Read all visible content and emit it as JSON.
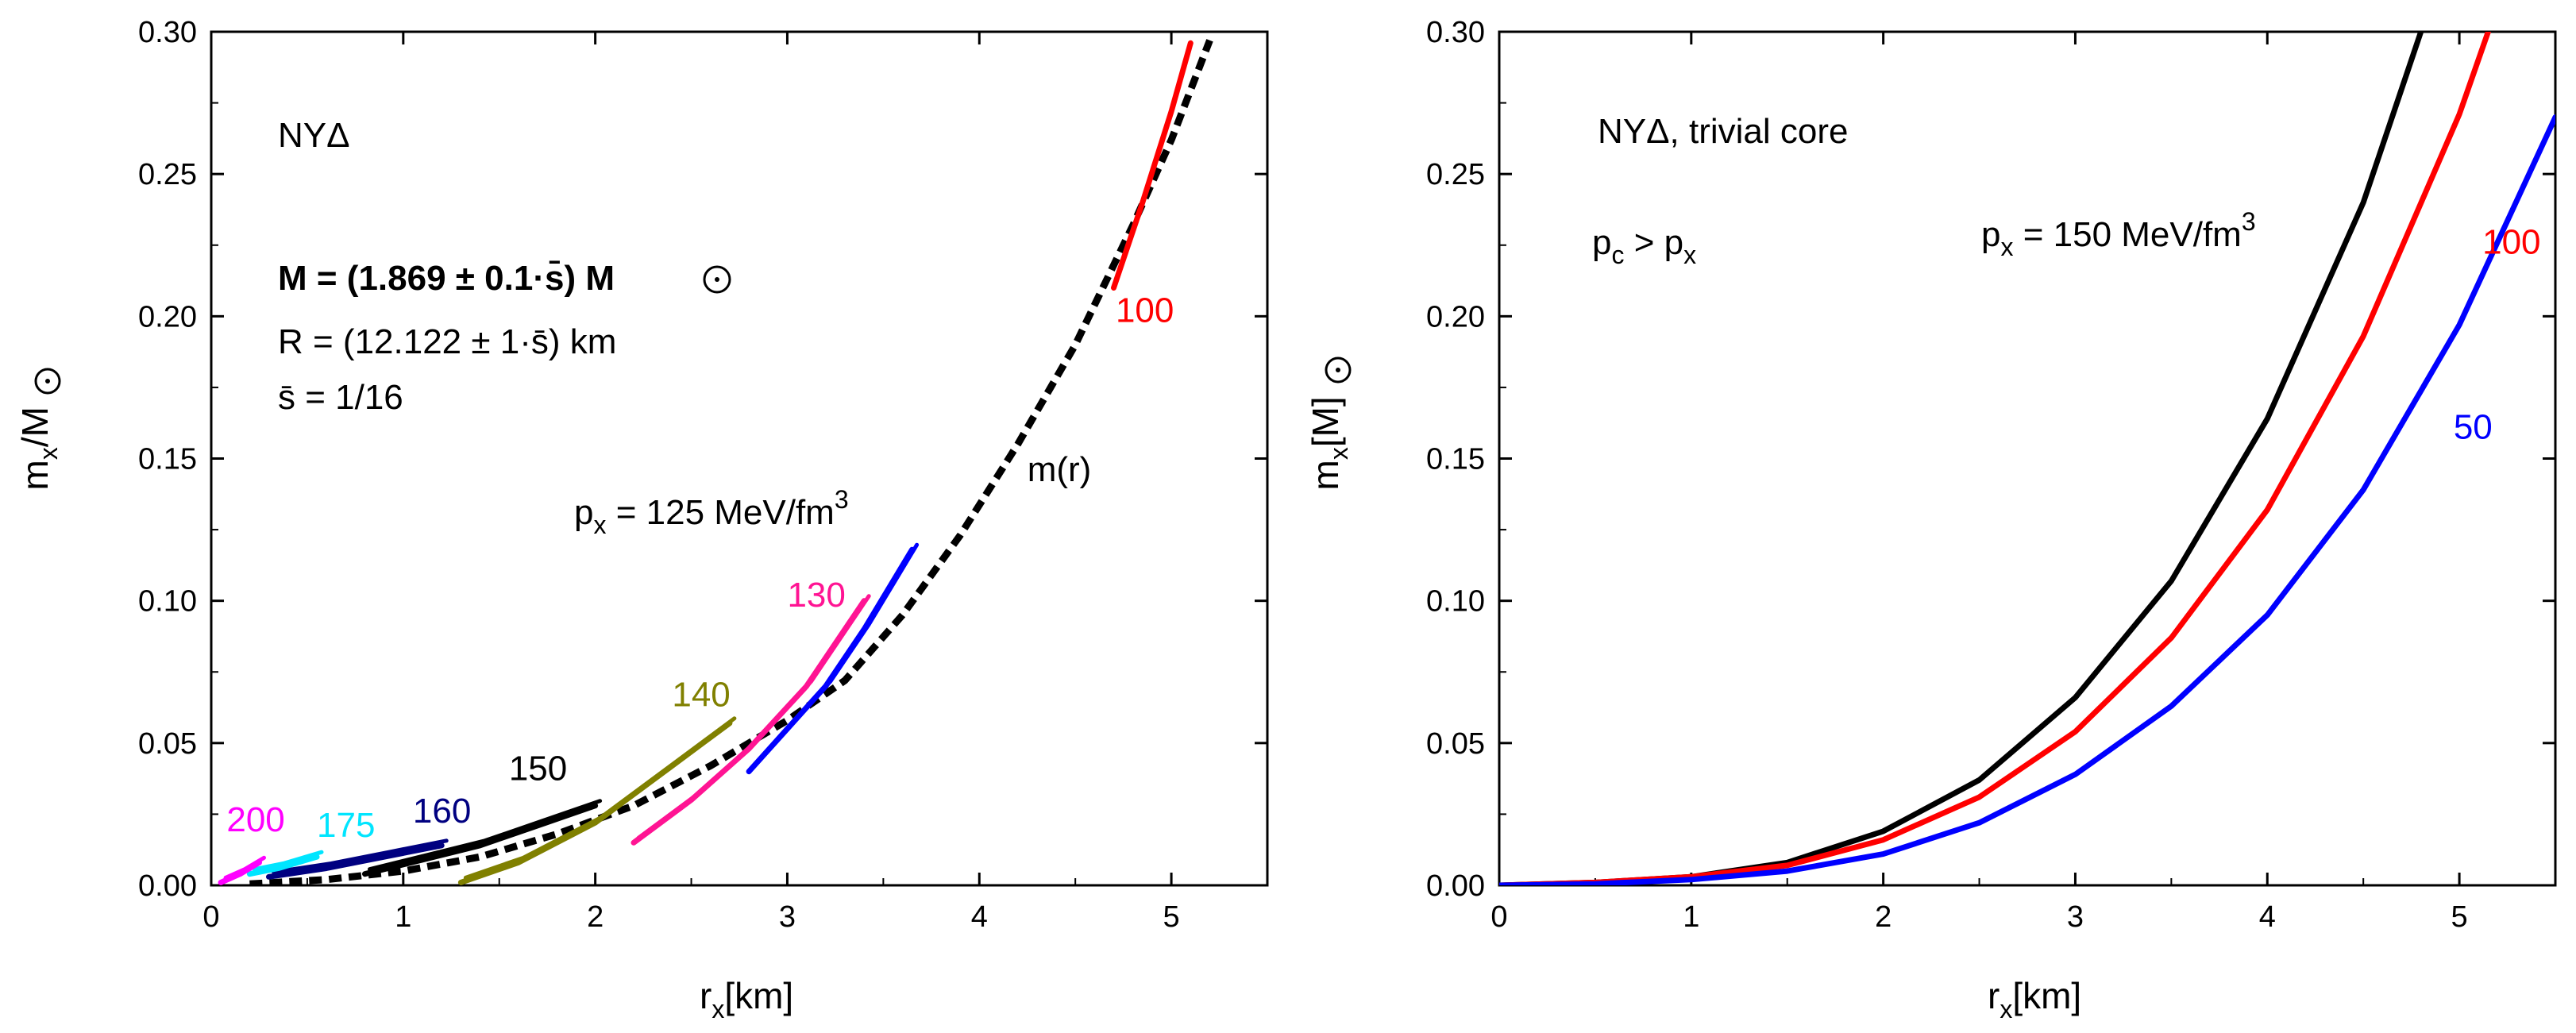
{
  "colors": {
    "red": "#ff0000",
    "blue": "#0000ff",
    "magenta": "#ff00ff",
    "cyan": "#00e5ff",
    "navy": "#000080",
    "black": "#000000",
    "olive": "#808000",
    "pink": "#ff1493"
  },
  "chart_data": [
    {
      "type": "line",
      "panel": "left",
      "xlabel": "r",
      "xlabel_sub": "x",
      "xlabel_unit": "[km]",
      "ylabel": "m",
      "ylabel_sub": "x",
      "ylabel_unit": "/M",
      "xlim": [
        0,
        5.5
      ],
      "ylim": [
        0,
        0.3
      ],
      "x_ticks": [
        "0",
        "1",
        "2",
        "3",
        "4",
        "5"
      ],
      "y_ticks": [
        "0.00",
        "0.05",
        "0.10",
        "0.15",
        "0.20",
        "0.25",
        "0.30"
      ],
      "annotations": {
        "model": "NYΔ",
        "mass_line": "M = (1.869 ± 0.1·s̄) M",
        "radius_line": "R = (12.122 ± 1·s̄) km",
        "s_line": "s̄ = 1/16",
        "px_line": "p",
        "px_sub": "x",
        "px_value": " = 125 MeV/fm",
        "px_sup": "3"
      },
      "series": [
        {
          "name": "m(r)",
          "label": "m(r)",
          "color": "black",
          "style": "dashed",
          "x": [
            0.2,
            0.6,
            1.0,
            1.4,
            1.8,
            2.2,
            2.6,
            3.0,
            3.3,
            3.6,
            3.9,
            4.2,
            4.5,
            4.8,
            5.0,
            5.2
          ],
          "y": [
            0.0005,
            0.002,
            0.005,
            0.01,
            0.018,
            0.028,
            0.042,
            0.058,
            0.072,
            0.095,
            0.123,
            0.155,
            0.19,
            0.232,
            0.262,
            0.297
          ]
        },
        {
          "name": "100",
          "label": "100",
          "color": "red",
          "style": "solid",
          "x": [
            4.7,
            4.85,
            5.0,
            5.1
          ],
          "y": [
            0.21,
            0.24,
            0.272,
            0.296
          ]
        },
        {
          "name": "125",
          "label": "",
          "color": "blue",
          "style": "solid",
          "x": [
            2.8,
            3.0,
            3.2,
            3.4,
            3.65
          ],
          "y": [
            0.04,
            0.055,
            0.07,
            0.09,
            0.118
          ]
        },
        {
          "name": "130",
          "label": "130",
          "color": "pink",
          "style": "solid",
          "x": [
            2.2,
            2.5,
            2.8,
            3.1,
            3.4
          ],
          "y": [
            0.015,
            0.03,
            0.048,
            0.07,
            0.1
          ]
        },
        {
          "name": "140",
          "label": "140",
          "color": "olive",
          "style": "solid",
          "x": [
            1.3,
            1.6,
            2.0,
            2.4,
            2.7
          ],
          "y": [
            0.001,
            0.008,
            0.022,
            0.042,
            0.057
          ]
        },
        {
          "name": "150",
          "label": "150",
          "color": "black",
          "style": "solid",
          "x": [
            0.8,
            1.1,
            1.4,
            1.7,
            2.0
          ],
          "y": [
            0.004,
            0.009,
            0.014,
            0.021,
            0.028
          ]
        },
        {
          "name": "160",
          "label": "160",
          "color": "navy",
          "style": "solid",
          "x": [
            0.3,
            0.6,
            0.9,
            1.2
          ],
          "y": [
            0.003,
            0.006,
            0.01,
            0.014
          ]
        },
        {
          "name": "175",
          "label": "175",
          "color": "cyan",
          "style": "solid",
          "x": [
            0.2,
            0.35,
            0.55
          ],
          "y": [
            0.004,
            0.006,
            0.01
          ]
        },
        {
          "name": "200",
          "label": "200",
          "color": "magenta",
          "style": "solid",
          "x": [
            0.05,
            0.15,
            0.25
          ],
          "y": [
            0.001,
            0.004,
            0.008
          ]
        }
      ]
    },
    {
      "type": "line",
      "panel": "right",
      "xlabel": "r",
      "xlabel_sub": "x",
      "xlabel_unit": "[km]",
      "ylabel": "m",
      "ylabel_sub": "x",
      "ylabel_unit": "[M",
      "ylabel_unit_end": "]",
      "xlim": [
        0,
        5.5
      ],
      "ylim": [
        0,
        0.3
      ],
      "x_ticks": [
        "0",
        "1",
        "2",
        "3",
        "4",
        "5"
      ],
      "y_ticks": [
        "0.00",
        "0.05",
        "0.10",
        "0.15",
        "0.20",
        "0.25",
        "0.30"
      ],
      "annotations": {
        "title": "NYΔ, trivial core",
        "pc_a": "p",
        "pc_a_sub": "c",
        "pc_gt": " > p",
        "pc_b_sub": "x",
        "px_line": "p",
        "px_sub": "x",
        "px_value": " = 150 MeV/fm",
        "px_sup": "3"
      },
      "series": [
        {
          "name": "150",
          "label": "",
          "color": "black",
          "style": "solid",
          "x": [
            0,
            0.5,
            1.0,
            1.5,
            2.0,
            2.5,
            3.0,
            3.5,
            4.0,
            4.5,
            4.8
          ],
          "y": [
            0,
            0.001,
            0.003,
            0.008,
            0.019,
            0.037,
            0.066,
            0.107,
            0.164,
            0.24,
            0.3
          ]
        },
        {
          "name": "100",
          "label": "100",
          "color": "red",
          "style": "solid",
          "x": [
            0,
            0.5,
            1.0,
            1.5,
            2.0,
            2.5,
            3.0,
            3.5,
            4.0,
            4.5,
            5.0,
            5.15
          ],
          "y": [
            0,
            0.001,
            0.003,
            0.007,
            0.016,
            0.031,
            0.054,
            0.087,
            0.132,
            0.193,
            0.271,
            0.3
          ]
        },
        {
          "name": "50",
          "label": "50",
          "color": "blue",
          "style": "solid",
          "x": [
            0,
            0.5,
            1.0,
            1.5,
            2.0,
            2.5,
            3.0,
            3.5,
            4.0,
            4.5,
            5.0,
            5.5
          ],
          "y": [
            0,
            0.0005,
            0.002,
            0.005,
            0.011,
            0.022,
            0.039,
            0.063,
            0.095,
            0.139,
            0.197,
            0.27
          ]
        }
      ]
    }
  ]
}
